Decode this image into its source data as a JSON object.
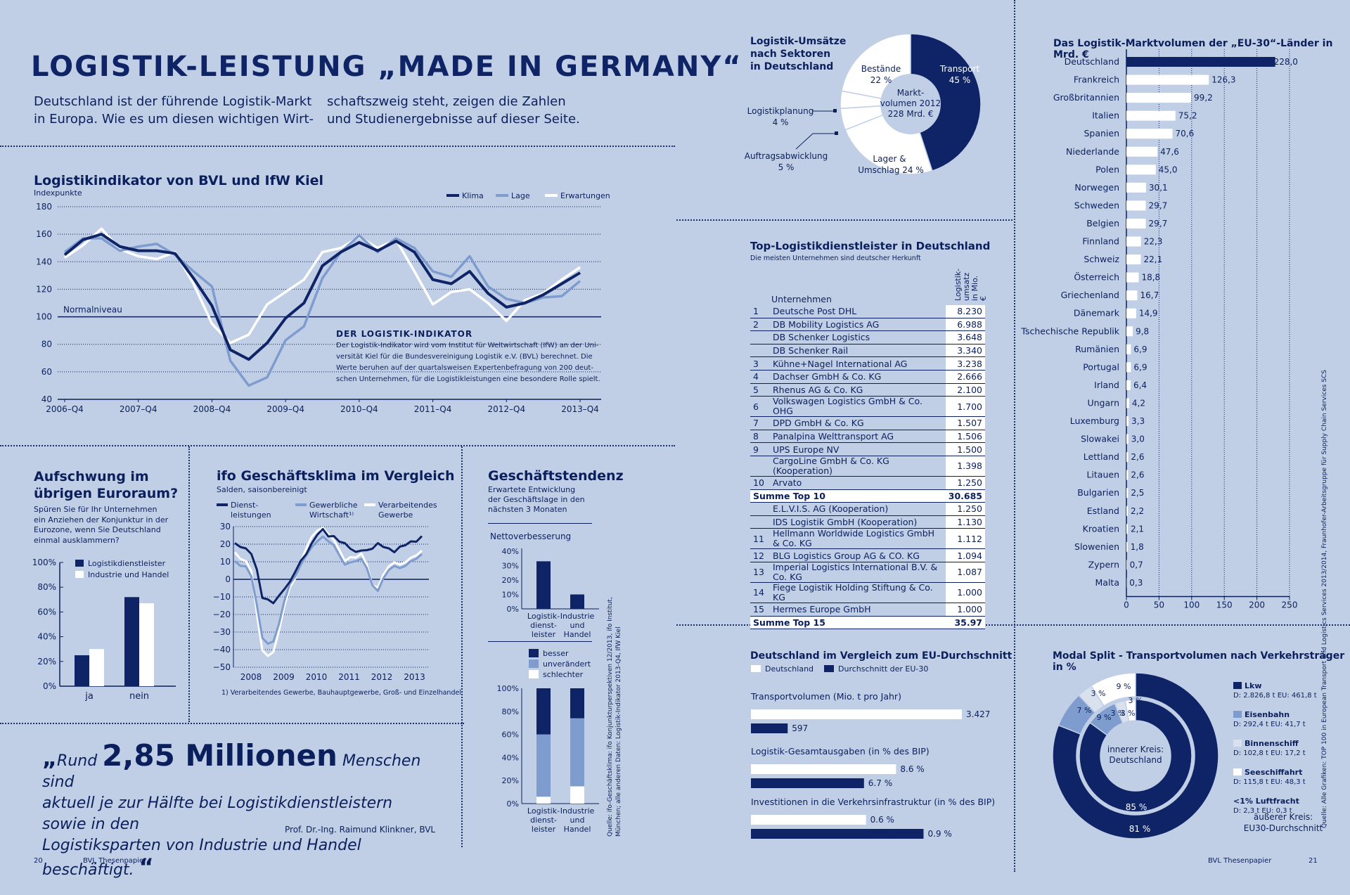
{
  "header": {
    "title": "LOGISTIK-LEISTUNG „MADE IN GERMANY“",
    "intro_left": [
      "Deutschland ist der führende Logistik-Markt",
      "in Europa. Wie es um diesen wichtigen Wirt-"
    ],
    "intro_right": [
      "schaftszweig steht, zeigen die Zahlen",
      "und Studienergebnisse auf dieser Seite."
    ]
  },
  "colors": {
    "navy": "#0f2466",
    "mid": "#7f9cce",
    "white": "#ffffff",
    "light": "#d9e1ef",
    "bg": "#c0cfe6"
  },
  "indikator": {
    "title": "Logistikindikator von BVL und IfW Kiel",
    "unit": "Indexpunkte",
    "normal": "Normalniveau",
    "box_title": "DER LOGISTIK-INDIKATOR",
    "box_text": [
      "Der Logistik-Indikator wird vom Institut für Weltwirtschaft (IfW) an der Uni-",
      "versität Kiel für die Bundesvereinigung Logistik e.V. (BVL) berechnet. Die",
      "Werte beruhen auf der quartalsweisen Expertenbefragung von 200 deut-",
      "schen Unternehmen, für die Logistikleistungen eine besondere Rolle spielt."
    ]
  },
  "aufschwung": {
    "title": [
      "Aufschwung im",
      "übrigen Euroraum?"
    ],
    "text": [
      "Spüren Sie für Ihr Unternehmen",
      "ein Anziehen der Konjunktur in der",
      "Eurozone, wenn Sie Deutschland",
      "einmal ausklammern?"
    ]
  },
  "ifo": {
    "title": "ifo Geschäftsklima im Vergleich",
    "sub": "Salden, saisonbereinigt",
    "footnote": "1) Verarbeitendes Gewerbe, Bauhauptgewerbe, Groß- und Einzelhandel"
  },
  "tendenz": {
    "title": "Geschäftstendenz",
    "sub": [
      "Erwartete Entwicklung",
      "der Geschäftslage in den",
      "nächsten 3 Monaten"
    ],
    "netto": "Nettoverbesserung"
  },
  "source_left": [
    "Quelle: ifo-Geschäftsklima: ifo Konjunkturperspektiven 12/2013, ifo Institut,",
    "München; alle anderen Daten: Logistik-Indikator 2013-Q4, IfW Kiel"
  ],
  "source_right": "Quelle: Alle Grafiken: TOP 100 in European Transport and Logistics Services 2013/2014, Fraunhofer-Arbeitsgruppe für Supply Chain Services SCS",
  "quote": {
    "line1_pre": "Rund ",
    "big": "2,85 Millionen",
    "line1_post": " Menschen sind",
    "line2": "aktuell je zur Hälfte bei Logistikdienstleistern sowie in den",
    "line3": "Logistiksparten von Industrie und Handel beschäftigt.",
    "author": "Prof. Dr.-Ing. Raimund Klinkner, BVL"
  },
  "footer": {
    "left_page": "20",
    "left_label": "BVL Thesenpapier",
    "right_label": "BVL Thesenpapier",
    "right_page": "21"
  },
  "pie": {
    "title": [
      "Logistik-Umsätze",
      "nach Sektoren",
      "in Deutschland"
    ],
    "center": [
      "Markt-",
      "volumen 2012",
      "228 Mrd. €"
    ]
  },
  "top": {
    "title": "Top-Logistikdienstleister in Deutschland",
    "sub": "Die meisten Unternehmen sind deutscher Herkunft",
    "col_company": "Unternehmen",
    "col_value": [
      "Logistik-",
      "umsatz",
      "in Mio. €"
    ],
    "rows": [
      [
        "1",
        "Deutsche Post DHL",
        "8.230"
      ],
      [
        "2",
        "DB Mobility Logistics AG",
        "6.988"
      ],
      [
        "",
        "DB Schenker Logistics",
        "3.648"
      ],
      [
        "",
        "DB Schenker Rail",
        "3.340"
      ],
      [
        "3",
        "Kühne+Nagel International AG",
        "3.238"
      ],
      [
        "4",
        "Dachser GmbH & Co. KG",
        "2.666"
      ],
      [
        "5",
        "Rhenus AG & Co. KG",
        "2.100"
      ],
      [
        "6",
        "Volkswagen Logistics GmbH & Co. OHG",
        "1.700"
      ],
      [
        "7",
        "DPD GmbH & Co. KG",
        "1.507"
      ],
      [
        "8",
        "Panalpina Welttransport AG",
        "1.506"
      ],
      [
        "9",
        "UPS Europe NV",
        "1.500"
      ],
      [
        "",
        "CargoLine GmbH & Co. KG (Kooperation)",
        "1.398"
      ],
      [
        "10",
        "Arvato",
        "1.250"
      ],
      [
        "sum",
        "Summe Top 10",
        "30.685"
      ],
      [
        "",
        "E.L.V.I.S. AG (Kooperation)",
        "1.250"
      ],
      [
        "",
        "IDS Logistik GmbH (Kooperation)",
        "1.130"
      ],
      [
        "11",
        "Hellmann Worldwide Logistics GmbH & Co. KG",
        "1.112"
      ],
      [
        "12",
        "BLG Logistics Group AG & CO. KG",
        "1.094"
      ],
      [
        "13",
        "Imperial Logistics International B.V. & Co. KG",
        "1.087"
      ],
      [
        "14",
        "Fiege Logistik Holding Stiftung & Co. KG",
        "1.000"
      ],
      [
        "15",
        "Hermes Europe GmbH",
        "1.000"
      ],
      [
        "sum",
        "Summe Top 15",
        "35.97"
      ]
    ]
  },
  "eu_title": "Das Logistik-Marktvolumen der „EU-30“-Länder in Mrd. €",
  "vergleich": {
    "title": "Deutschland im Vergleich zum EU-Durchschnitt",
    "legend_de": "Deutschland",
    "legend_eu": "Durchschnitt der EU-30"
  },
  "modal": {
    "title": "Modal Split - Transportvolumen nach Verkehrsträger in %",
    "inner": [
      "innerer Kreis:",
      "Deutschland"
    ],
    "outer": [
      "äußerer Kreis:",
      "EU30-Durchschnitt"
    ]
  },
  "chart_data": [
    {
      "type": "line",
      "title": "Logistikindikator von BVL und IfW Kiel",
      "ylabel": "Indexpunkte",
      "ylim": [
        40,
        180
      ],
      "xticks": [
        "2006–Q4",
        "2007–Q4",
        "2008–Q4",
        "2009–Q4",
        "2010–Q4",
        "2011–Q4",
        "2012–Q4",
        "2013–Q4"
      ],
      "series": [
        {
          "name": "Klima",
          "color": "#0f2466",
          "values": [
            145,
            156,
            160,
            151,
            148,
            148,
            146,
            128,
            108,
            76,
            69,
            81,
            99,
            110,
            137,
            147,
            154,
            148,
            155,
            147,
            127,
            124,
            133,
            117,
            107,
            110,
            116,
            124,
            132
          ]
        },
        {
          "name": "Lage",
          "color": "#7f9cce",
          "values": [
            147,
            157,
            157,
            148,
            151,
            153,
            145,
            133,
            122,
            68,
            50,
            56,
            83,
            93,
            128,
            147,
            159,
            147,
            157,
            150,
            133,
            129,
            144,
            122,
            113,
            110,
            114,
            115,
            126
          ]
        },
        {
          "name": "Erwartungen",
          "color": "#ffffff",
          "values": [
            143,
            152,
            164,
            149,
            144,
            142,
            147,
            124,
            95,
            81,
            87,
            109,
            118,
            127,
            147,
            150,
            158,
            150,
            156,
            133,
            109,
            118,
            120,
            110,
            97,
            112,
            117,
            127,
            136
          ]
        }
      ]
    },
    {
      "type": "bar",
      "title": "Aufschwung im übrigen Euroraum?",
      "categories": [
        "ja",
        "nein"
      ],
      "ylim": [
        0,
        100
      ],
      "series": [
        {
          "name": "Logistikdienstleister",
          "color": "#0f2466",
          "values": [
            25,
            72
          ]
        },
        {
          "name": "Industrie und Handel",
          "color": "#ffffff",
          "values": [
            30,
            67
          ]
        }
      ]
    },
    {
      "type": "line",
      "title": "ifo Geschäftsklima im Vergleich",
      "ylabel": "Salden, saisonbereinigt",
      "ylim": [
        -50,
        30
      ],
      "xticks": [
        "2008",
        "2009",
        "2010",
        "2011",
        "2012",
        "2013"
      ],
      "series": [
        {
          "name": "Dienst-leistungen",
          "color": "#0f2466",
          "values": [
            20,
            19,
            17,
            15,
            5,
            -10,
            -12,
            -13,
            -10,
            -5,
            -2,
            5,
            10,
            15,
            20,
            26,
            28,
            25,
            24,
            22,
            20,
            18,
            15,
            17,
            16,
            18,
            20,
            19,
            17,
            16,
            18,
            20,
            21,
            22,
            24
          ]
        },
        {
          "name": "Gewerbliche Wirtschaft¹⁾",
          "color": "#7f9cce",
          "values": [
            10,
            8,
            7,
            2,
            -15,
            -33,
            -37,
            -35,
            -26,
            -12,
            -3,
            2,
            8,
            14,
            18,
            22,
            24,
            22,
            19,
            14,
            8,
            10,
            10,
            12,
            6,
            -3,
            -7,
            1,
            5,
            8,
            6,
            8,
            10,
            12,
            14
          ]
        },
        {
          "name": "Verarbeitendes Gewerbe",
          "color": "#ffffff",
          "values": [
            15,
            12,
            10,
            5,
            -20,
            -40,
            -44,
            -41,
            -30,
            -15,
            -5,
            1,
            10,
            18,
            24,
            28,
            29,
            26,
            22,
            17,
            10,
            13,
            12,
            15,
            8,
            -3,
            -5,
            3,
            7,
            10,
            8,
            10,
            12,
            14,
            16
          ]
        }
      ]
    },
    {
      "type": "bar",
      "title": "Nettoverbesserung",
      "categories": [
        "Logistik-dienst-leister",
        "Industrie und Handel"
      ],
      "ylim": [
        0,
        40
      ],
      "yticks": [
        "0%",
        "10%",
        "20%",
        "30%",
        "40%"
      ],
      "values": [
        33,
        10
      ]
    },
    {
      "type": "bar",
      "title": "Geschäftstendenz (gestapelt)",
      "categories": [
        "Logistik-dienst-leister",
        "Industrie und Handel"
      ],
      "ylim": [
        0,
        100
      ],
      "yticks": [
        "0%",
        "20%",
        "40%",
        "60%",
        "80%",
        "100%"
      ],
      "series": [
        {
          "name": "schlechter",
          "color": "#ffffff",
          "values": [
            6,
            15
          ]
        },
        {
          "name": "unverändert",
          "color": "#7f9cce",
          "values": [
            54,
            59
          ]
        },
        {
          "name": "besser",
          "color": "#0f2466",
          "values": [
            40,
            26
          ]
        }
      ]
    },
    {
      "type": "pie",
      "title": "Logistik-Umsätze nach Sektoren in Deutschland",
      "slices": [
        {
          "name": "Transport",
          "value": 45,
          "label": "45 %",
          "color": "#0f2466"
        },
        {
          "name": "Lager & Umschlag",
          "value": 24,
          "label": "24 %",
          "color": "#ffffff"
        },
        {
          "name": "Auftragsabwicklung",
          "value": 5,
          "label": "5 %",
          "color": "#ffffff"
        },
        {
          "name": "Logistikplanung",
          "value": 4,
          "label": "4 %",
          "color": "#ffffff"
        },
        {
          "name": "Bestände",
          "value": 22,
          "label": "22 %",
          "color": "#ffffff"
        }
      ]
    },
    {
      "type": "bar",
      "orientation": "horizontal",
      "title": "Das Logistik-Marktvolumen der „EU-30“-Länder in Mrd. €",
      "xlim": [
        0,
        250
      ],
      "xticks": [
        "0",
        "50",
        "100",
        "150",
        "200",
        "250"
      ],
      "categories": [
        "Deutschland",
        "Frankreich",
        "Großbritannien",
        "Italien",
        "Spanien",
        "Niederlande",
        "Polen",
        "Norwegen",
        "Schweden",
        "Belgien",
        "Finnland",
        "Schweiz",
        "Österreich",
        "Griechenland",
        "Dänemark",
        "Tschechische Republik",
        "Rumänien",
        "Portugal",
        "Irland",
        "Ungarn",
        "Luxemburg",
        "Slowakei",
        "Lettland",
        "Litauen",
        "Bulgarien",
        "Estland",
        "Kroatien",
        "Slowenien",
        "Zypern",
        "Malta"
      ],
      "values": [
        228.0,
        126.3,
        99.2,
        75.2,
        70.6,
        47.6,
        45.0,
        30.1,
        29.7,
        29.7,
        22.3,
        22.1,
        18.8,
        16.7,
        14.9,
        9.8,
        6.9,
        6.9,
        6.4,
        4.2,
        3.3,
        3.0,
        2.6,
        2.6,
        2.5,
        2.2,
        2.1,
        1.8,
        0.7,
        0.3
      ],
      "labels": [
        "228,0",
        "126,3",
        "99,2",
        "75,2",
        "70,6",
        "47,6",
        "45,0",
        "30,1",
        "29,7",
        "29,7",
        "22,3",
        "22,1",
        "18,8",
        "16,7",
        "14,9",
        "9,8",
        "6,9",
        "6,9",
        "6,4",
        "4,2",
        "3,3",
        "3,0",
        "2,6",
        "2,6",
        "2,5",
        "2,2",
        "2,1",
        "1,8",
        "0,7",
        "0,3"
      ]
    },
    {
      "type": "bar",
      "orientation": "horizontal",
      "title": "Deutschland im Vergleich zum EU-Durchschnitt",
      "groups": [
        {
          "label": "Transportvolumen (Mio. t pro Jahr)",
          "de": 3427,
          "eu": 597,
          "de_label": "3.427",
          "eu_label": "597",
          "max": 3427
        },
        {
          "label": "Logistik-Gesamtausgaben (in % des BIP)",
          "de": 8.6,
          "eu": 6.7,
          "de_label": "8.6 %",
          "eu_label": "6.7 %",
          "max": 12.5
        },
        {
          "label": "Investitionen in die Verkehrsinfrastruktur (in % des BIP)",
          "de": 0.6,
          "eu": 0.9,
          "de_label": "0.6 %",
          "eu_label": "0.9 %",
          "max": 1.1
        }
      ]
    },
    {
      "type": "pie",
      "title": "Modal Split - Transportvolumen nach Verkehrsträger in %",
      "inner": {
        "name": "Deutschland",
        "slices": [
          {
            "name": "Lkw",
            "value": 85,
            "label": "85 %"
          },
          {
            "name": "Eisenbahn",
            "value": 9,
            "label": "9 %"
          },
          {
            "name": "Binnenschiff",
            "value": 3,
            "label": "3 %"
          },
          {
            "name": "Seeschifffahrt",
            "value": 3,
            "label": "3 %"
          }
        ]
      },
      "outer": {
        "name": "EU30-Durchschnitt",
        "slices": [
          {
            "name": "Lkw",
            "value": 81,
            "label": "81 %"
          },
          {
            "name": "Eisenbahn",
            "value": 7,
            "label": "7 %"
          },
          {
            "name": "Binnenschiff",
            "value": 3,
            "label": "3 %"
          },
          {
            "name": "Seeschifffahrt",
            "value": 9,
            "label": "9 %"
          }
        ]
      },
      "legend": [
        {
          "name": "Lkw",
          "detail": "D: 2.826,8 t   EU: 461,8 t",
          "color": "#0f2466"
        },
        {
          "name": "Eisenbahn",
          "detail": "D: 292,4 t   EU: 41,7 t",
          "color": "#7f9cce"
        },
        {
          "name": "Binnenschiff",
          "detail": "D: 102,8 t   EU: 17,2 t",
          "color": "#d9e1ef"
        },
        {
          "name": "Seeschiffahrt",
          "detail": "D: 115,8 t   EU: 48,3 t",
          "color": "#ffffff"
        },
        {
          "name": "<1% Luftfracht",
          "detail": "D: 2,3 t   EU: 0,3 t",
          "color": "#c0cfe6"
        }
      ]
    }
  ]
}
